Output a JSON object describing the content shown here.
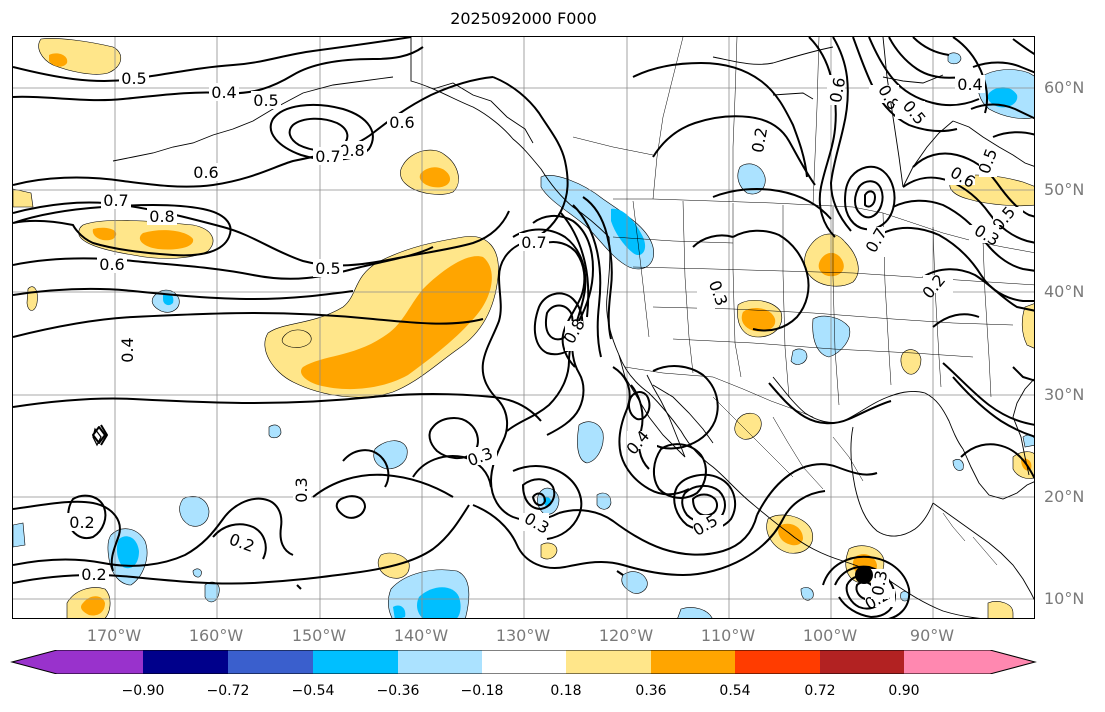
{
  "title": "2025092000 F000",
  "map": {
    "lat_labels": [
      "60°N",
      "50°N",
      "40°N",
      "30°N",
      "20°N",
      "10°N"
    ],
    "lon_labels": [
      "170°W",
      "160°W",
      "150°W",
      "140°W",
      "130°W",
      "120°W",
      "110°W",
      "100°W",
      "90°W"
    ],
    "contour_labels": [
      "0.5",
      "0.4",
      "0.5",
      "0.6",
      "0.8",
      "0.7",
      "0.6",
      "0.7",
      "0.8",
      "0.6",
      "0.5",
      "0.4",
      "0.7",
      "0.8",
      "0.3",
      "0.2",
      "0.3",
      "0.3",
      "0.4",
      "0.5",
      "0.3",
      "0.2",
      "0.2",
      "0.2",
      "0.3",
      "0.2",
      "0.8",
      "0.6",
      "0.5",
      "0.7",
      "0.5",
      "0.4",
      "0.6",
      "0.2",
      "0.5",
      "0.3"
    ],
    "storm_marker": "tropical-cyclone-center"
  },
  "colorbar": {
    "ticks": [
      "−0.90",
      "−0.72",
      "−0.54",
      "−0.36",
      "−0.18",
      "0.18",
      "0.36",
      "0.54",
      "0.72",
      "0.90"
    ],
    "colors": [
      "#9932cc",
      "#00008b",
      "#3a5fcd",
      "#00bfff",
      "#abe2ff",
      "#ffffff",
      "#ffe68a",
      "#ffa500",
      "#ff3c00",
      "#b22222",
      "#ff88b0"
    ]
  }
}
